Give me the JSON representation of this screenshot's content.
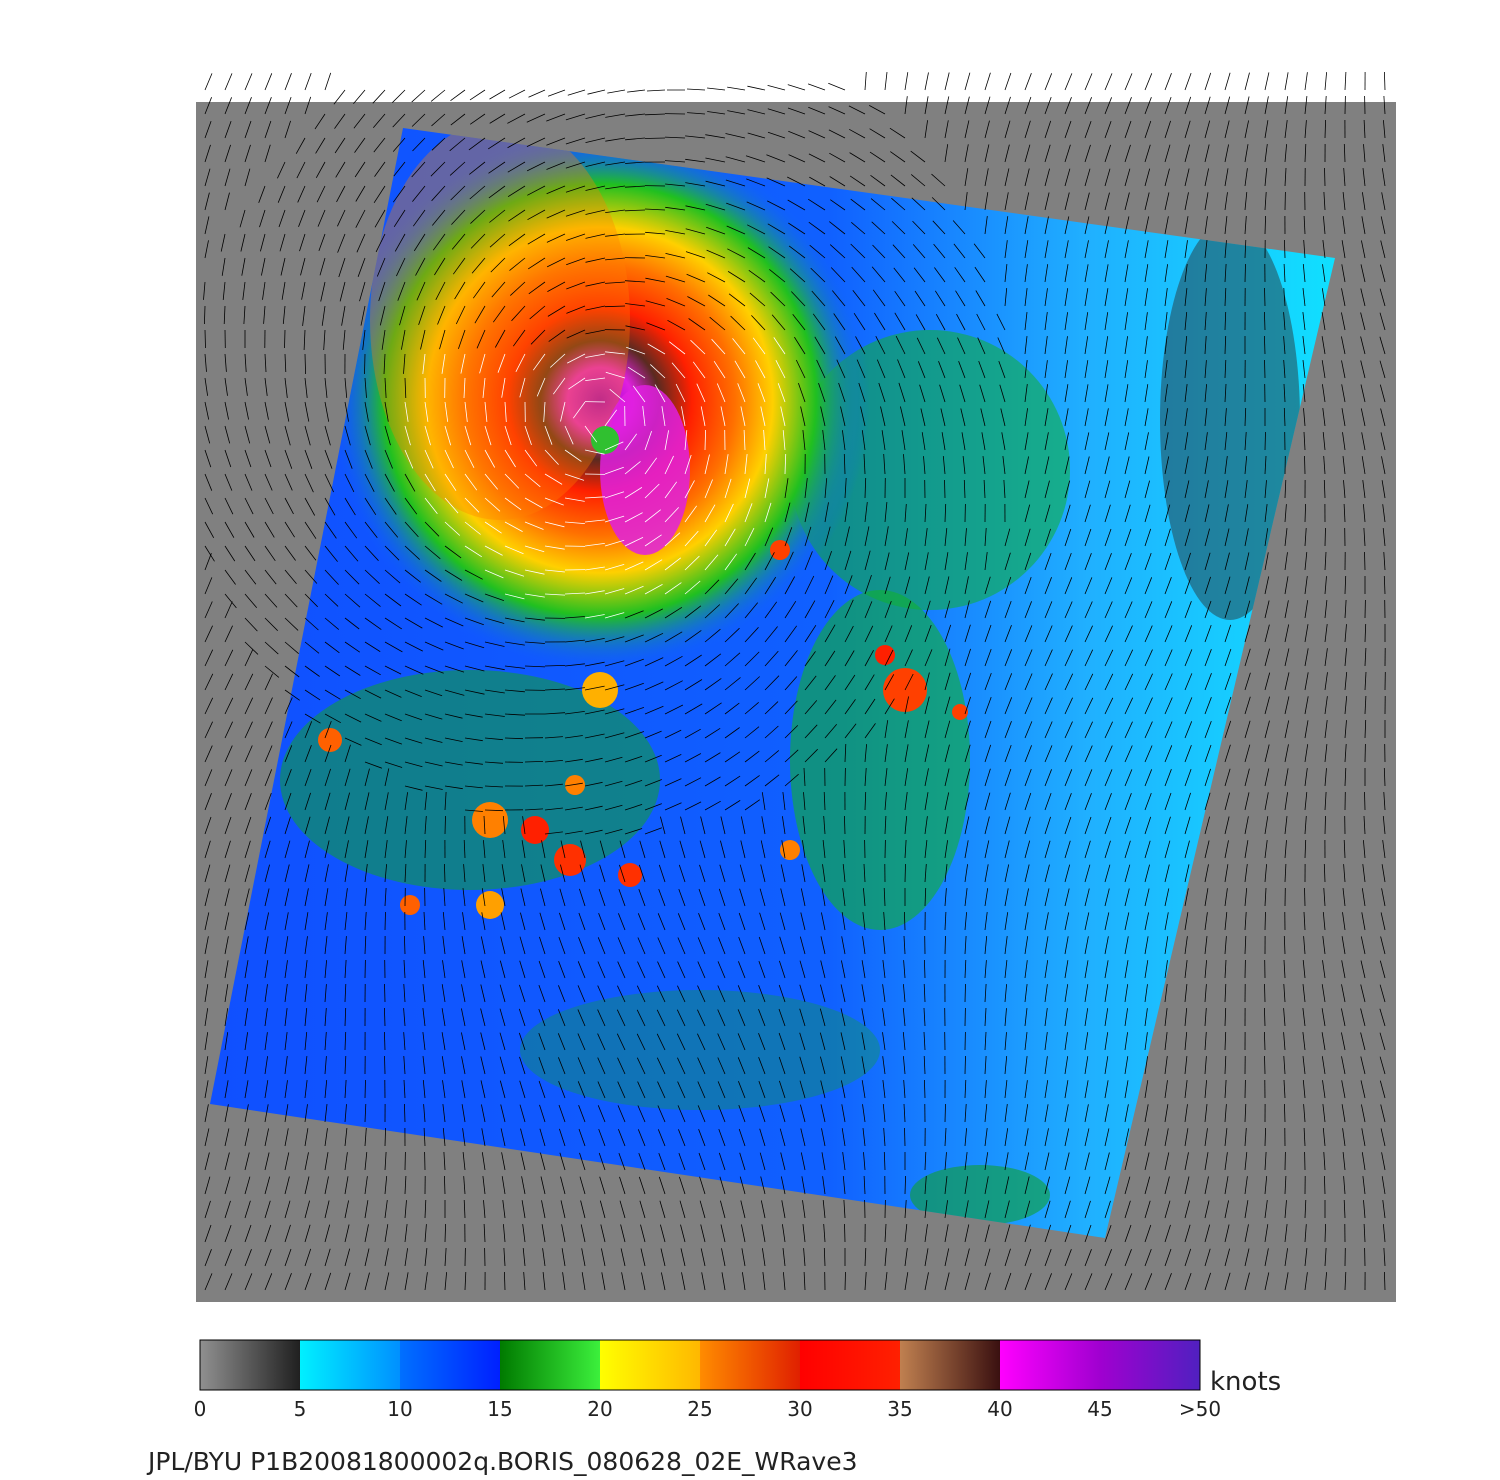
{
  "chart_data": {
    "type": "heatmap",
    "title": "",
    "caption": "JPL/BYU  P1B20081800002q.BORIS_080628_02E_WRave3",
    "colorbar": {
      "unit": "knots",
      "range": [
        0,
        50
      ],
      "ticks": [
        {
          "value": 0,
          "label": "0"
        },
        {
          "value": 5,
          "label": "5"
        },
        {
          "value": 10,
          "label": "10"
        },
        {
          "value": 15,
          "label": "15"
        },
        {
          "value": 20,
          "label": "20"
        },
        {
          "value": 25,
          "label": "25"
        },
        {
          "value": 30,
          "label": "30"
        },
        {
          "value": 35,
          "label": "35"
        },
        {
          "value": 40,
          "label": "40"
        },
        {
          "value": 45,
          "label": "45"
        },
        {
          "value": 50,
          "label": ">50"
        }
      ],
      "segments": [
        {
          "from": 0,
          "to": 5,
          "colors": [
            "#909090",
            "#202020"
          ]
        },
        {
          "from": 5,
          "to": 10,
          "colors": [
            "#00f0ff",
            "#0090ff"
          ]
        },
        {
          "from": 10,
          "to": 15,
          "colors": [
            "#0070ff",
            "#0020ff"
          ]
        },
        {
          "from": 15,
          "to": 20,
          "colors": [
            "#007a00",
            "#3cf03c"
          ]
        },
        {
          "from": 20,
          "to": 25,
          "colors": [
            "#ffff00",
            "#ffb800"
          ]
        },
        {
          "from": 25,
          "to": 30,
          "colors": [
            "#ff8c00",
            "#e02000"
          ]
        },
        {
          "from": 30,
          "to": 35,
          "colors": [
            "#ff0000",
            "#ff2000"
          ]
        },
        {
          "from": 35,
          "to": 40,
          "colors": [
            "#c08050",
            "#3a1010"
          ]
        },
        {
          "from": 40,
          "to": 45,
          "colors": [
            "#ff00ff",
            "#a000d0"
          ]
        },
        {
          "from": 45,
          "to": 50,
          "colors": [
            "#a000d0",
            "#5020c0"
          ]
        }
      ]
    },
    "background_color": "#808080",
    "vector_color": "#000000",
    "storm_center": {
      "wind_max_knots": 45
    }
  }
}
